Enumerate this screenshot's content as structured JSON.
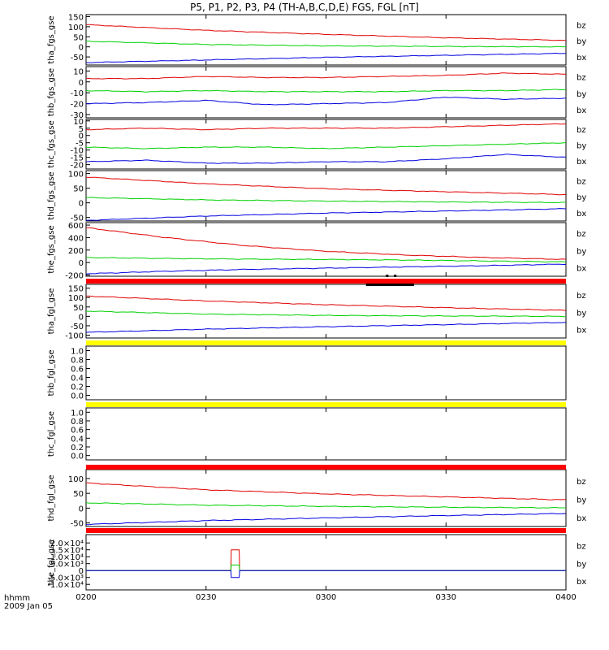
{
  "title": "P5, P1, P2, P3, P4 (TH-A,B,C,D,E) FGS, FGL [nT]",
  "time_axis": {
    "label_line1": "hhmm",
    "label_line2": "2009 Jan 05",
    "ticks": [
      "0200",
      "0230",
      "0300",
      "0330",
      "0400"
    ],
    "range_minutes": [
      0,
      120
    ]
  },
  "colors": {
    "bz": "#e00000",
    "by": "#00d000",
    "bx": "#0000e0",
    "red_bar": "#ff0000",
    "yellow_bar": "#ffff00",
    "black": "#000000"
  },
  "chart_data": [
    {
      "type": "line",
      "ylabel": "tha_fgs_gse",
      "ylim": [
        -90,
        160
      ],
      "yticks": [
        {
          "v": 150,
          "t": "150"
        },
        {
          "v": 100,
          "t": "100"
        },
        {
          "v": 50,
          "t": "50"
        },
        {
          "v": 0,
          "t": "0"
        },
        {
          "v": -50,
          "t": "-50"
        }
      ],
      "x": [
        0,
        30,
        60,
        90,
        120
      ],
      "series": [
        {
          "name": "bz",
          "values": [
            110,
            82,
            62,
            45,
            32
          ]
        },
        {
          "name": "by",
          "values": [
            28,
            12,
            5,
            2,
            0
          ]
        },
        {
          "name": "bx",
          "values": [
            -78,
            -65,
            -52,
            -42,
            -32
          ]
        }
      ]
    },
    {
      "type": "line",
      "ylabel": "thb_fgs_gse",
      "ylim": [
        -33,
        14
      ],
      "yticks": [
        {
          "v": 10,
          "t": "10"
        },
        {
          "v": 0,
          "t": "0"
        },
        {
          "v": -10,
          "t": "-10"
        },
        {
          "v": -20,
          "t": "-20"
        },
        {
          "v": -30,
          "t": "-30"
        }
      ],
      "x": [
        0,
        15,
        30,
        45,
        60,
        75,
        90,
        105,
        120
      ],
      "series": [
        {
          "name": "bz",
          "values": [
            3,
            3,
            5,
            4,
            4,
            5,
            6,
            8,
            7
          ]
        },
        {
          "name": "by",
          "values": [
            -8,
            -9,
            -8,
            -9,
            -9,
            -9,
            -8,
            -8,
            -7
          ]
        },
        {
          "name": "bx",
          "values": [
            -20,
            -19,
            -17,
            -21,
            -20,
            -19,
            -14,
            -16,
            -15
          ]
        }
      ]
    },
    {
      "type": "line",
      "ylabel": "thc_fgs_gse",
      "ylim": [
        -23,
        11
      ],
      "yticks": [
        {
          "v": 10,
          "t": "10"
        },
        {
          "v": 5,
          "t": "5"
        },
        {
          "v": 0,
          "t": "0"
        },
        {
          "v": -5,
          "t": "-5"
        },
        {
          "v": -10,
          "t": "-10"
        },
        {
          "v": -15,
          "t": "-15"
        },
        {
          "v": -20,
          "t": "-20"
        }
      ],
      "x": [
        0,
        15,
        30,
        45,
        60,
        75,
        90,
        105,
        120
      ],
      "series": [
        {
          "name": "bz",
          "values": [
            4,
            5,
            4,
            5,
            5,
            5,
            6,
            7,
            8
          ]
        },
        {
          "name": "by",
          "values": [
            -8,
            -9,
            -8,
            -8,
            -9,
            -8,
            -7,
            -6,
            -5
          ]
        },
        {
          "name": "bx",
          "values": [
            -18,
            -17,
            -19,
            -19,
            -18,
            -18,
            -16,
            -13,
            -15
          ]
        }
      ]
    },
    {
      "type": "line",
      "ylabel": "thd_fgs_gse",
      "ylim": [
        -62,
        110
      ],
      "yticks": [
        {
          "v": 100,
          "t": "100"
        },
        {
          "v": 50,
          "t": "50"
        },
        {
          "v": 0,
          "t": "0"
        },
        {
          "v": -50,
          "t": "-50"
        }
      ],
      "x": [
        0,
        30,
        60,
        90,
        120
      ],
      "series": [
        {
          "name": "bz",
          "values": [
            88,
            65,
            48,
            38,
            28
          ]
        },
        {
          "name": "by",
          "values": [
            18,
            10,
            6,
            3,
            1
          ]
        },
        {
          "name": "bx",
          "values": [
            -60,
            -45,
            -35,
            -28,
            -20
          ]
        }
      ]
    },
    {
      "type": "line",
      "ylabel": "the_fgs_gse",
      "ylim": [
        -220,
        640
      ],
      "yticks": [
        {
          "v": 600,
          "t": "600"
        },
        {
          "v": 400,
          "t": "400"
        },
        {
          "v": 200,
          "t": "200"
        },
        {
          "v": 0,
          "t": "0"
        },
        {
          "v": -200,
          "t": "-200"
        }
      ],
      "x": [
        0,
        20,
        40,
        60,
        80,
        100,
        120
      ],
      "series": [
        {
          "name": "bz",
          "values": [
            560,
            400,
            270,
            180,
            120,
            80,
            50
          ]
        },
        {
          "name": "by",
          "values": [
            80,
            65,
            55,
            50,
            40,
            25,
            10
          ]
        },
        {
          "name": "bx",
          "values": [
            -180,
            -140,
            -110,
            -90,
            -70,
            -50,
            -25
          ]
        }
      ]
    },
    {
      "type": "line",
      "ylabel": "tha_fgl_gse",
      "ylim": [
        -115,
        170
      ],
      "yticks": [
        {
          "v": 150,
          "t": "150"
        },
        {
          "v": 100,
          "t": "100"
        },
        {
          "v": 50,
          "t": "50"
        },
        {
          "v": 0,
          "t": "0"
        },
        {
          "v": -50,
          "t": "-50"
        },
        {
          "v": -100,
          "t": "-100"
        }
      ],
      "x": [
        0,
        30,
        60,
        90,
        120
      ],
      "series": [
        {
          "name": "bz",
          "values": [
            108,
            82,
            62,
            46,
            32
          ]
        },
        {
          "name": "by",
          "values": [
            28,
            12,
            5,
            2,
            0
          ]
        },
        {
          "name": "bx",
          "values": [
            -85,
            -68,
            -55,
            -44,
            -32
          ]
        }
      ]
    },
    {
      "type": "line",
      "ylabel": "thb_fgl_gse",
      "ylim": [
        -0.1,
        1.1
      ],
      "yticks": [
        {
          "v": 1,
          "t": "1.0"
        },
        {
          "v": 0.8,
          "t": "0.8"
        },
        {
          "v": 0.6,
          "t": "0.6"
        },
        {
          "v": 0.4,
          "t": "0.4"
        },
        {
          "v": 0.2,
          "t": "0.2"
        },
        {
          "v": 0,
          "t": "0.0"
        }
      ],
      "x": [],
      "series": []
    },
    {
      "type": "line",
      "ylabel": "thc_fgl_gse",
      "ylim": [
        -0.1,
        1.1
      ],
      "yticks": [
        {
          "v": 1,
          "t": "1.0"
        },
        {
          "v": 0.8,
          "t": "0.8"
        },
        {
          "v": 0.6,
          "t": "0.6"
        },
        {
          "v": 0.4,
          "t": "0.4"
        },
        {
          "v": 0.2,
          "t": "0.2"
        },
        {
          "v": 0,
          "t": "0.0"
        }
      ],
      "x": [],
      "series": []
    },
    {
      "type": "line",
      "ylabel": "thd_fgl_gse",
      "ylim": [
        -62,
        130
      ],
      "yticks": [
        {
          "v": 100,
          "t": "100"
        },
        {
          "v": 50,
          "t": "50"
        },
        {
          "v": 0,
          "t": "0"
        },
        {
          "v": -50,
          "t": "-50"
        }
      ],
      "x": [
        0,
        30,
        60,
        90,
        120
      ],
      "series": [
        {
          "name": "bz",
          "values": [
            85,
            62,
            48,
            38,
            28
          ]
        },
        {
          "name": "by",
          "values": [
            18,
            10,
            6,
            3,
            1
          ]
        },
        {
          "name": "bx",
          "values": [
            -55,
            -42,
            -33,
            -25,
            -18
          ]
        }
      ]
    },
    {
      "type": "line",
      "ylabel": "the_fgl_gse",
      "ylim": [
        -14000,
        26000
      ],
      "yticks": [
        {
          "v": 20000,
          "t": "2.0×10⁴"
        },
        {
          "v": 15000,
          "t": "1.5×10⁴"
        },
        {
          "v": 10000,
          "t": "1.0×10⁴"
        },
        {
          "v": 5000,
          "t": "5.0×10³"
        },
        {
          "v": 0,
          "t": "0"
        },
        {
          "v": -5000,
          "t": "-5.0×10³"
        },
        {
          "v": -10000,
          "t": "-1.0×10⁴"
        }
      ],
      "x": [
        0,
        36.2,
        36.3,
        38.3,
        38.4,
        120
      ],
      "series": [
        {
          "name": "bz",
          "values": [
            0,
            0,
            15000,
            15000,
            0,
            0
          ]
        },
        {
          "name": "by",
          "values": [
            0,
            0,
            4000,
            4000,
            0,
            0
          ]
        },
        {
          "name": "bx",
          "values": [
            0,
            0,
            -5000,
            -5000,
            0,
            0
          ]
        }
      ]
    }
  ]
}
